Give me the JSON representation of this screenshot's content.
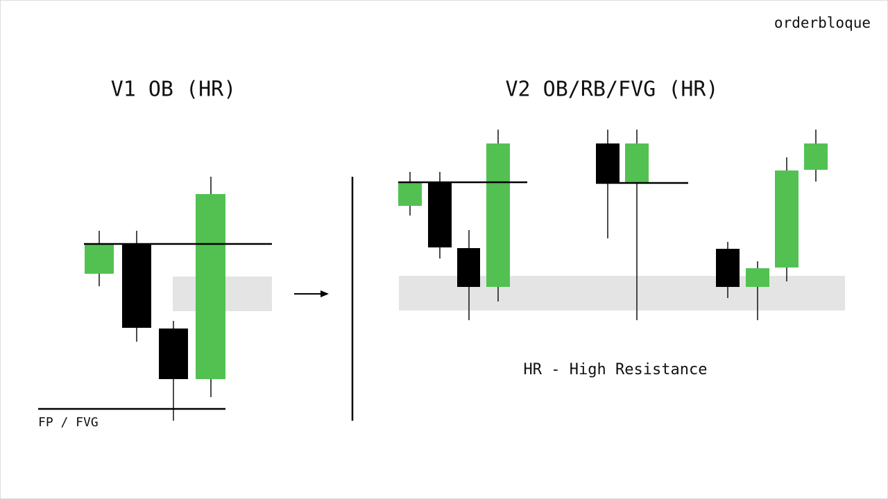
{
  "brand": "orderbloque",
  "left": {
    "title": "V1 OB (HR)",
    "label": "FP / FVG"
  },
  "right": {
    "title": "V2 OB/RB/FVG (HR)",
    "caption": "HR - High Resistance"
  }
}
